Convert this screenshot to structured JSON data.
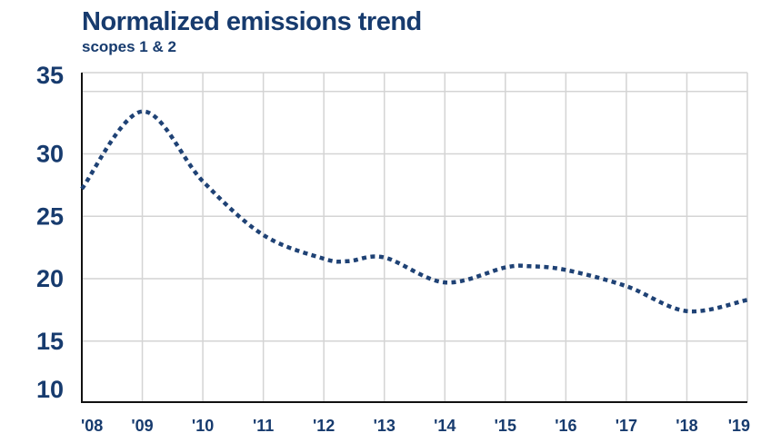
{
  "colors": {
    "series": "#1f4275",
    "text": "#173b6e",
    "grid": "#d4d4d4",
    "axis": "#111111"
  },
  "chart_data": {
    "type": "line",
    "title": "Normalized emissions trend",
    "subtitle": "scopes 1 & 2",
    "xlabel": "",
    "ylabel": "",
    "x_tick_labels": [
      "'08",
      "'09",
      "'10",
      "'11",
      "'12",
      "'13",
      "'14",
      "'15",
      "'16",
      "'17",
      "'18",
      "'19"
    ],
    "y_tick_labels": [
      "10",
      "15",
      "20",
      "25",
      "30",
      "35"
    ],
    "ylim": [
      9,
      35
    ],
    "y_ticks": [
      10,
      15,
      20,
      25,
      30,
      35
    ],
    "grid": true,
    "line_style": "dotted",
    "series": [
      {
        "x": [
          2008,
          2009,
          2010,
          2011,
          2012,
          2012.4,
          2013,
          2014,
          2015,
          2015.4,
          2016,
          2017,
          2018,
          2019
        ],
        "values": [
          27.2,
          33.4,
          27.8,
          23.5,
          21.6,
          21.4,
          21.7,
          19.7,
          20.9,
          21.0,
          20.7,
          19.4,
          17.4,
          18.3
        ]
      }
    ]
  }
}
